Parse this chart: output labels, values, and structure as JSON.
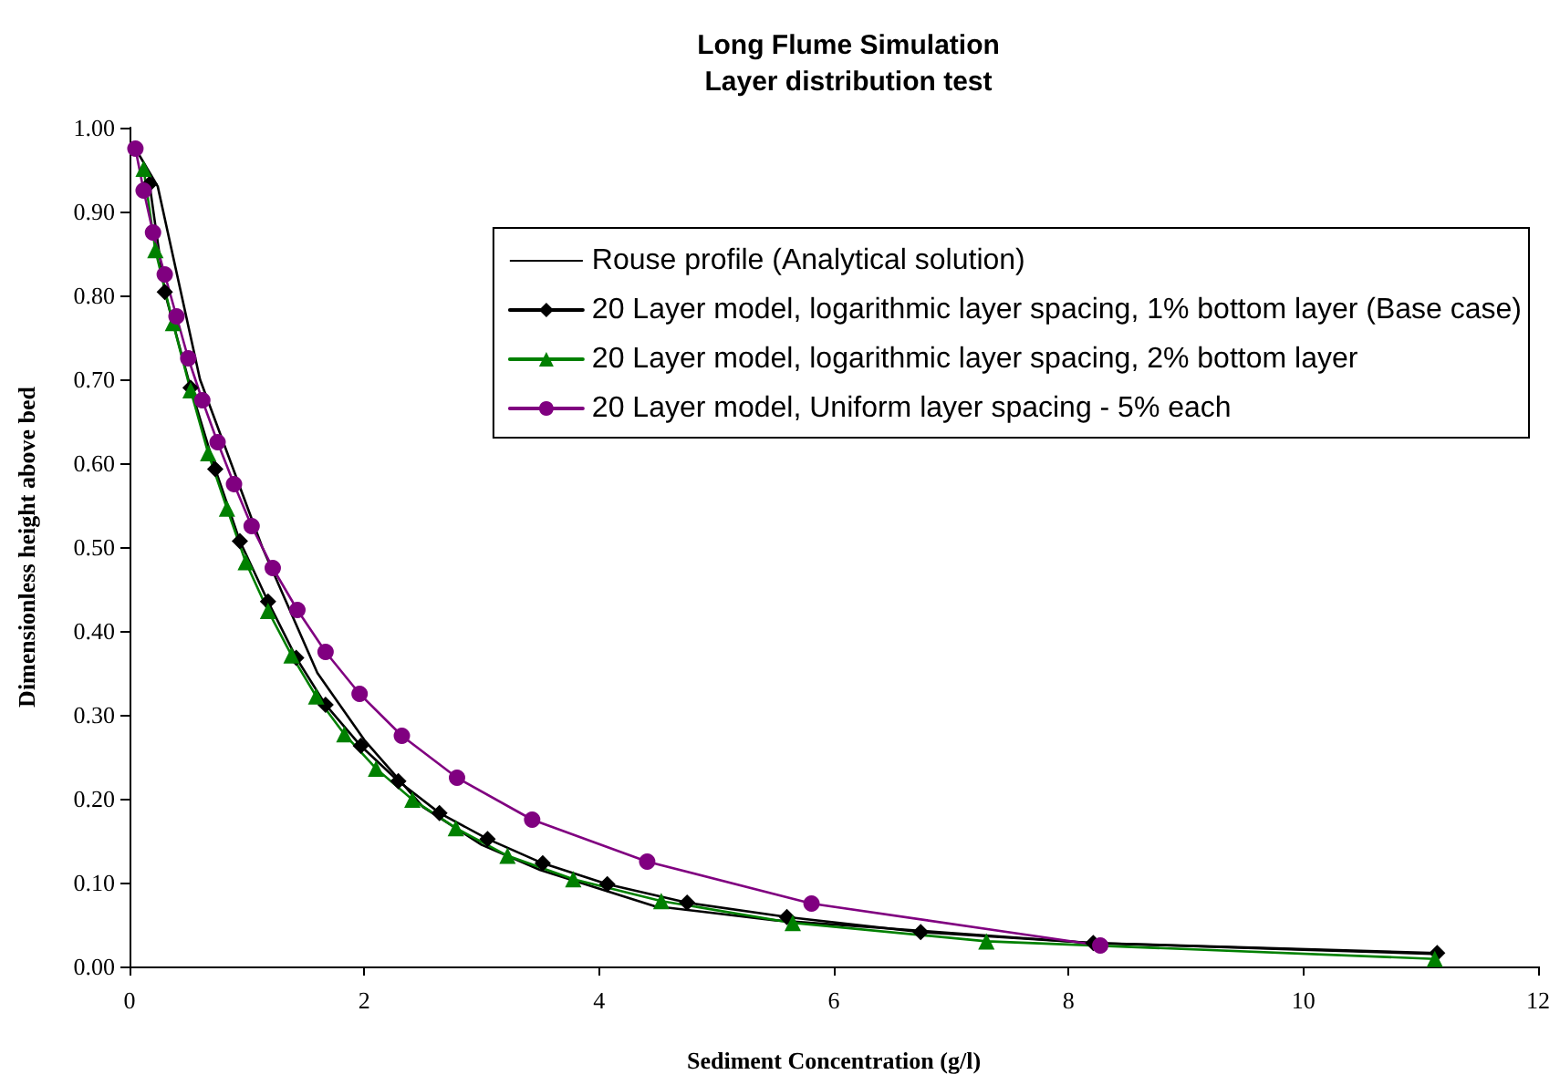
{
  "chart_data": {
    "type": "line",
    "title": "Long Flume Simulation\nLayer distribution test",
    "xlabel": "Sediment Concentration (g/l)",
    "ylabel": "Dimensionless height above bed",
    "xlim": [
      0,
      12
    ],
    "xticks": [
      0,
      2,
      4,
      6,
      8,
      10,
      12
    ],
    "ylim": [
      0,
      1
    ],
    "yticks": [
      {
        "value": 0,
        "label": "0.00"
      },
      {
        "value": 0.1,
        "label": "0.10"
      },
      {
        "value": 0.2,
        "label": "0.20"
      },
      {
        "value": 0.3,
        "label": "0.30"
      },
      {
        "value": 0.4,
        "label": "0.40"
      },
      {
        "value": 0.5,
        "label": "0.50"
      },
      {
        "value": 0.6,
        "label": "0.60"
      },
      {
        "value": 0.7,
        "label": "0.70"
      },
      {
        "value": 0.8,
        "label": "0.80"
      },
      {
        "value": 0.9,
        "label": "0.90"
      },
      {
        "value": 1,
        "label": "1.00"
      }
    ],
    "grid": false,
    "legend": "top right",
    "line_style": "solid",
    "series": [
      {
        "name": "Rouse profile (Analytical solution)",
        "color": "#000000",
        "marker": "none",
        "x": [
          0.05,
          0.24,
          0.6,
          1.13,
          1.6,
          2.0,
          2.5,
          3.0,
          3.5,
          4.47,
          5.5,
          7.0,
          8.2,
          10.0,
          11.1
        ],
        "values": [
          0.975,
          0.93,
          0.7,
          0.5,
          0.35,
          0.27,
          0.19,
          0.145,
          0.115,
          0.072,
          0.055,
          0.04,
          0.028,
          0.02,
          0.015
        ]
      },
      {
        "name": "20 Layer model, logarithmic layer spacing, 1% bottom layer (Base case)",
        "color": "#000000",
        "marker": "diamond",
        "x": [
          0.17,
          0.3,
          0.52,
          0.73,
          0.94,
          1.18,
          1.42,
          1.67,
          1.97,
          2.29,
          2.64,
          3.05,
          3.52,
          4.07,
          4.75,
          5.6,
          6.74,
          8.21,
          11.14
        ],
        "values": [
          0.933,
          0.804,
          0.69,
          0.593,
          0.507,
          0.435,
          0.368,
          0.312,
          0.263,
          0.221,
          0.183,
          0.152,
          0.123,
          0.098,
          0.076,
          0.059,
          0.041,
          0.028,
          0.016
        ]
      },
      {
        "name": "20 Layer model, logarithmic layer spacing, 2% bottom layer",
        "color": "#008000",
        "marker": "triangle",
        "x": [
          0.12,
          0.22,
          0.37,
          0.52,
          0.67,
          0.83,
          0.99,
          1.18,
          1.38,
          1.59,
          1.83,
          2.1,
          2.41,
          2.78,
          3.22,
          3.78,
          4.53,
          5.65,
          7.3,
          11.12
        ],
        "values": [
          0.951,
          0.854,
          0.767,
          0.687,
          0.612,
          0.546,
          0.482,
          0.424,
          0.371,
          0.322,
          0.277,
          0.236,
          0.199,
          0.165,
          0.132,
          0.104,
          0.078,
          0.052,
          0.03,
          0.009
        ]
      },
      {
        "name": "20 Layer model, Uniform layer spacing - 5% each",
        "color": "#800080",
        "marker": "circle",
        "x": [
          0.05,
          0.12,
          0.2,
          0.3,
          0.4,
          0.5,
          0.62,
          0.75,
          0.89,
          1.04,
          1.22,
          1.43,
          1.67,
          1.96,
          2.32,
          2.79,
          3.43,
          4.41,
          5.81,
          8.27
        ],
        "values": [
          0.975,
          0.925,
          0.875,
          0.825,
          0.775,
          0.725,
          0.675,
          0.625,
          0.575,
          0.525,
          0.475,
          0.425,
          0.375,
          0.325,
          0.275,
          0.225,
          0.175,
          0.125,
          0.075,
          0.025
        ]
      }
    ]
  }
}
